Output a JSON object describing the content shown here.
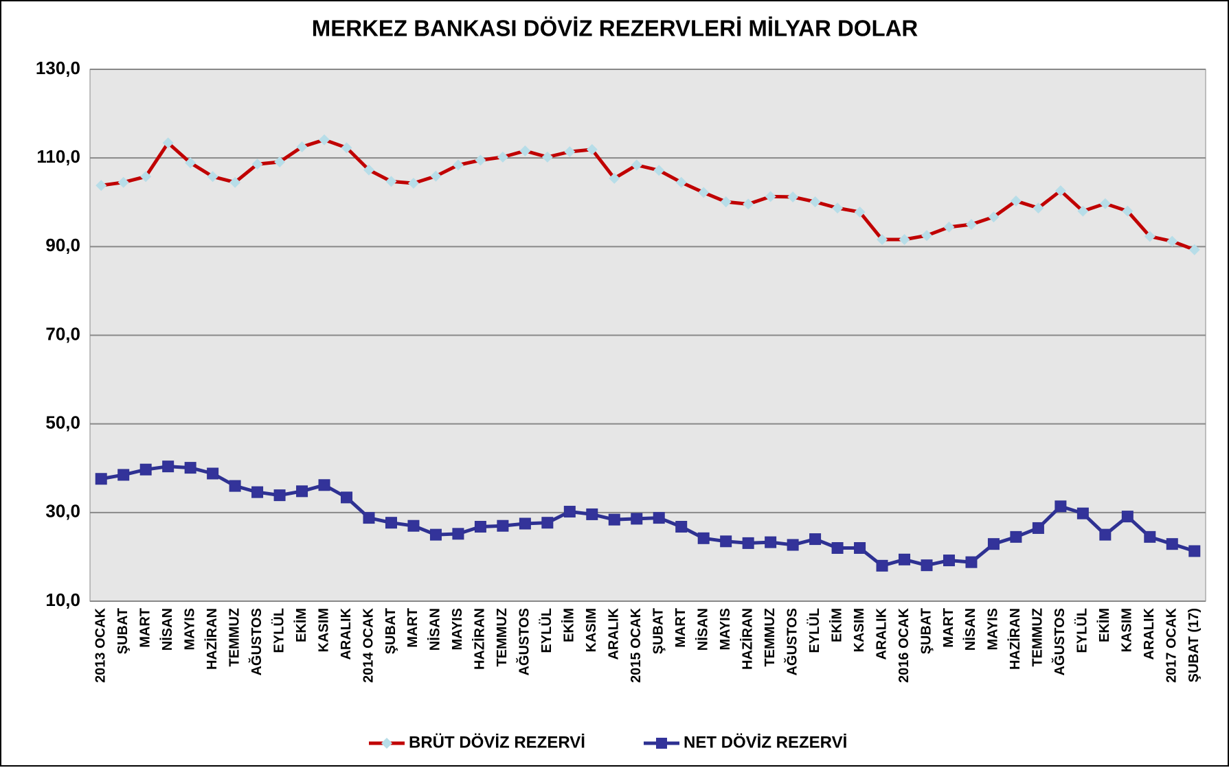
{
  "chart_data": {
    "type": "line",
    "title": "MERKEZ BANKASI DÖVİZ REZERVLERİ MİLYAR DOLAR",
    "categories": [
      "2013 OCAK",
      "ŞUBAT",
      "MART",
      "NİSAN",
      "MAYIS",
      "HAZİRAN",
      "TEMMUZ",
      "AĞUSTOS",
      "EYLÜL",
      "EKİM",
      "KASIM",
      "ARALIK",
      "2014 OCAK",
      "ŞUBAT",
      "MART",
      "NİSAN",
      "MAYIS",
      "HAZİRAN",
      "TEMMUZ",
      "AĞUSTOS",
      "EYLÜL",
      "EKİM",
      "KASIM",
      "ARALIK",
      "2015 OCAK",
      "ŞUBAT",
      "MART",
      "NİSAN",
      "MAYIS",
      "HAZİRAN",
      "TEMMUZ",
      "AĞUSTOS",
      "EYLÜL",
      "EKİM",
      "KASIM",
      "ARALIK",
      "2016 OCAK",
      "ŞUBAT",
      "MART",
      "NİSAN",
      "MAYIS",
      "HAZİRAN",
      "TEMMUZ",
      "AĞUSTOS",
      "EYLÜL",
      "EKİM",
      "KASIM",
      "ARALIK",
      "2017 OCAK",
      "ŞUBAT (17)"
    ],
    "series": [
      {
        "name": "BRÜT DÖVİZ REZERVİ",
        "color": "#c00000",
        "marker": "diamond",
        "marker_color": "#b7dde8",
        "values": [
          103.8,
          104.5,
          105.8,
          113.4,
          108.9,
          105.8,
          104.5,
          108.6,
          109.1,
          112.5,
          114.1,
          112.3,
          107.3,
          104.7,
          104.3,
          105.9,
          108.4,
          109.5,
          110.2,
          111.6,
          110.2,
          111.4,
          111.9,
          105.4,
          108.4,
          107.2,
          104.5,
          102.2,
          100.1,
          99.6,
          101.3,
          101.2,
          100.1,
          98.7,
          97.8,
          91.6,
          91.6,
          92.5,
          94.4,
          95.0,
          96.7,
          100.3,
          98.7,
          102.6,
          98.0,
          99.7,
          98.0,
          92.3,
          91.2,
          89.3
        ]
      },
      {
        "name": "NET DÖVİZ REZERVİ",
        "color": "#2e3192",
        "marker": "square",
        "marker_color": "#33339a",
        "values": [
          37.6,
          38.5,
          39.7,
          40.4,
          40.1,
          38.8,
          36.0,
          34.6,
          33.9,
          34.8,
          36.2,
          33.4,
          28.8,
          27.7,
          27.0,
          25.0,
          25.2,
          26.8,
          27.0,
          27.5,
          27.7,
          30.2,
          29.6,
          28.4,
          28.6,
          28.8,
          26.8,
          24.2,
          23.5,
          23.1,
          23.3,
          22.7,
          24.0,
          22.0,
          22.0,
          18.0,
          19.4,
          18.1,
          19.2,
          18.8,
          22.9,
          24.5,
          26.5,
          31.4,
          29.8,
          25.0,
          29.1,
          24.5,
          22.9,
          21.3
        ]
      }
    ],
    "ylim": [
      10,
      130
    ],
    "yticks": [
      {
        "value": 10,
        "label": "10,0"
      },
      {
        "value": 30,
        "label": "30,0"
      },
      {
        "value": 50,
        "label": "50,0"
      },
      {
        "value": 70,
        "label": "70,0"
      },
      {
        "value": 90,
        "label": "90,0"
      },
      {
        "value": 110,
        "label": "110,0"
      },
      {
        "value": 130,
        "label": "130,0"
      }
    ],
    "grid": true,
    "legend": "bottom"
  }
}
